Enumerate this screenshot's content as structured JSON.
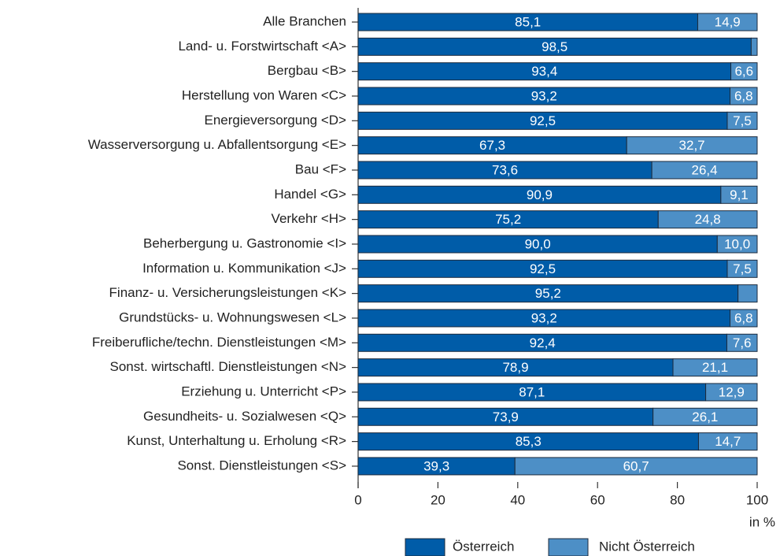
{
  "chart_data": {
    "type": "stacked_bar_horizontal",
    "categories": [
      "Alle Branchen",
      "Land- u. Forstwirtschaft <A>",
      "Bergbau <B>",
      "Herstellung von Waren <C>",
      "Energieversorgung <D>",
      "Wasserversorgung u. Abfallentsorgung <E>",
      "Bau <F>",
      "Handel <G>",
      "Verkehr <H>",
      "Beherbergung u. Gastronomie <I>",
      "Information u. Kommunikation <J>",
      "Finanz- u. Versicherungsleistungen <K>",
      "Grundstücks- u. Wohnungswesen <L>",
      "Freiberufliche/techn. Dienstleistungen <M>",
      "Sonst. wirtschaftl. Dienstleistungen <N>",
      "Erziehung u. Unterricht <P>",
      "Gesundheits- u. Sozialwesen <Q>",
      "Kunst, Unterhaltung u. Erholung <R>",
      "Sonst. Dienstleistungen <S>"
    ],
    "series": [
      {
        "name": "Österreich",
        "color": "#005ca8",
        "values": [
          85.1,
          98.5,
          93.4,
          93.2,
          92.5,
          67.3,
          73.6,
          90.9,
          75.2,
          90.0,
          92.5,
          95.2,
          93.2,
          92.4,
          78.9,
          87.1,
          73.9,
          85.3,
          39.3
        ],
        "value_labels": [
          "85,1",
          "98,5",
          "93,4",
          "93,2",
          "92,5",
          "67,3",
          "73,6",
          "90,9",
          "75,2",
          "90,0",
          "92,5",
          "95,2",
          "93,2",
          "92,4",
          "78,9",
          "87,1",
          "73,9",
          "85,3",
          "39,3"
        ]
      },
      {
        "name": "Nicht Österreich",
        "color": "#4d8fc6",
        "values": [
          14.9,
          1.5,
          6.6,
          6.8,
          7.5,
          32.7,
          26.4,
          9.1,
          24.8,
          10.0,
          7.5,
          4.8,
          6.8,
          7.6,
          21.1,
          12.9,
          26.1,
          14.7,
          60.7
        ],
        "value_labels": [
          "14,9",
          null,
          "6,6",
          "6,8",
          "7,5",
          "32,7",
          "26,4",
          "9,1",
          "24,8",
          "10,0",
          "7,5",
          null,
          "6,8",
          "7,6",
          "21,1",
          "12,9",
          "26,1",
          "14,7",
          "60,7"
        ]
      }
    ],
    "xlim": [
      0,
      100
    ],
    "xticks": [
      0,
      20,
      40,
      60,
      80,
      100
    ],
    "xlabel": "in %",
    "legend": "bottom"
  }
}
